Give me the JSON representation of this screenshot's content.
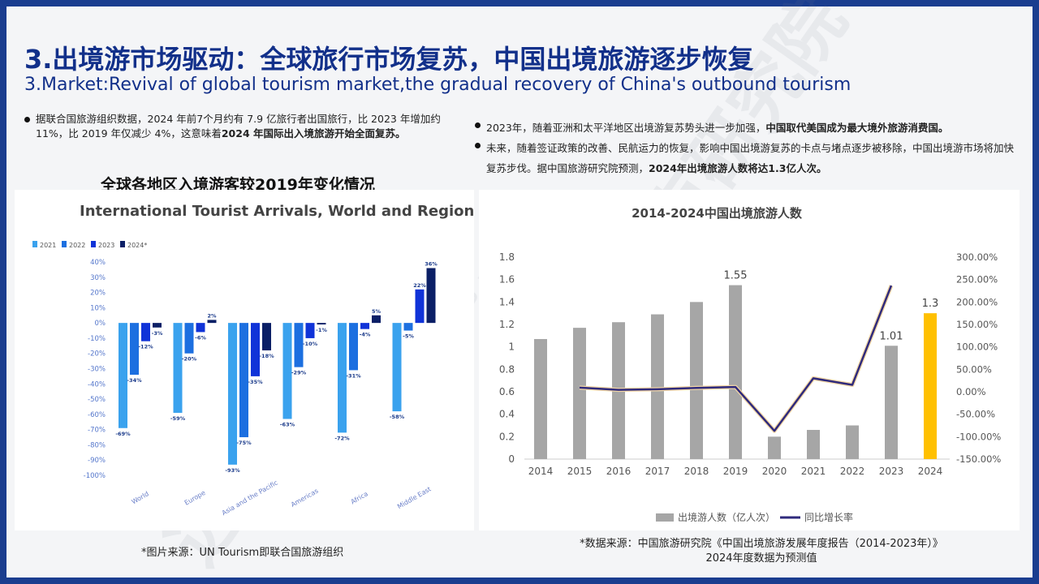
{
  "header": {
    "title_cn": "3.出境游市场驱动：全球旅行市场复苏，中国出境旅游逐步恢复",
    "title_en": "3.Market:Revival of global tourism market,the gradual recovery of China's outbound tourism"
  },
  "left_text": {
    "pre": "据联合国旅游组织数据，2024 年前7个月约有 7.9 亿旅行者出国旅行，比 2023 年增加约 11%，比 2019 年仅减少 4%，这意味着",
    "bold": "2024 年国际出入境旅游开始全面复苏。"
  },
  "right_text": {
    "b1_pre": "2023年，随着亚洲和太平洋地区出境游复苏势头进一步加强，",
    "b1_bold": "中国取代美国成为最大境外旅游消费国。",
    "b2_pre": "未来，随着签证政策的改善、民航运力的恢复，影响中国出境游复苏的卡点与堵点逐步被移除，中国出境游市场将加快复苏步伐。据中国旅游研究院预测，",
    "b2_bold": "2024年出境旅游人数将达1.3亿人次。"
  },
  "left_chart_heading": "全球各地区入境游客较2019年变化情况",
  "sources": {
    "left": "*图片来源：UN Tourism即联合国旅游组织",
    "right_line1": "*数据来源：中国旅游研究院《中国出境旅游发展年度报告（2014-2023年）》",
    "right_line2": "2024年度数据为预测值"
  },
  "watermark": {
    "cn": "迈点研究院",
    "en": "MEADIN ACADEMY"
  },
  "colors": {
    "title": "#12308a",
    "s2021": "#3aa2ee",
    "s2022": "#1c6fe0",
    "s2023": "#1033d8",
    "s2024": "#0b1f66",
    "bar_gray": "#a6a6a6",
    "bar_highlight": "#ffc000",
    "line": "#2f2a7c"
  },
  "chart_data": [
    {
      "type": "bar",
      "title": "International Tourist Arrivals, World and Regions",
      "categories": [
        "World",
        "Europe",
        "Asia and the Pacific",
        "Americas",
        "Africa",
        "Middle East"
      ],
      "series": [
        {
          "name": "2021",
          "values": [
            -69,
            -59,
            -93,
            -63,
            -72,
            -58
          ]
        },
        {
          "name": "2022",
          "values": [
            -34,
            -20,
            -75,
            -29,
            -31,
            -5
          ]
        },
        {
          "name": "2023",
          "values": [
            -12,
            -6,
            -35,
            -10,
            -4,
            22
          ]
        },
        {
          "name": "2024*",
          "values": [
            -3,
            2,
            -18,
            -1,
            5,
            36
          ]
        }
      ],
      "ylim": [
        -100,
        40
      ],
      "yticks": [
        "40%",
        "30%",
        "20%",
        "10%",
        "0%",
        "-10%",
        "-20%",
        "-30%",
        "-40%",
        "-50%",
        "-60%",
        "-70%",
        "-80%",
        "-90%",
        "-100%"
      ],
      "unit": "%",
      "legend_position": "top-left",
      "grid": false
    },
    {
      "type": "bar",
      "title": "2014-2024中国出境旅游人数",
      "categories": [
        "2014",
        "2015",
        "2016",
        "2017",
        "2018",
        "2019",
        "2020",
        "2021",
        "2022",
        "2023",
        "2024"
      ],
      "series": [
        {
          "name": "出境游人数（亿人次）",
          "type": "bar",
          "axis": "left",
          "values": [
            1.07,
            1.17,
            1.22,
            1.29,
            1.4,
            1.55,
            0.2,
            0.26,
            0.3,
            1.01,
            1.3
          ]
        },
        {
          "name": "同比增长率",
          "type": "line",
          "axis": "right",
          "x": [
            "2015",
            "2016",
            "2017",
            "2018",
            "2019",
            "2020",
            "2021",
            "2022",
            "2023"
          ],
          "values": [
            9.3,
            4.3,
            5.7,
            8.5,
            10.7,
            -87.1,
            30.0,
            15.4,
            236.7
          ]
        }
      ],
      "data_labels": {
        "2019": "1.55",
        "2023": "1.01",
        "2024": "1.3"
      },
      "highlight": "2024",
      "y_left": {
        "lim": [
          0,
          1.8
        ],
        "ticks": [
          "0",
          "0.2",
          "0.4",
          "0.6",
          "0.8",
          "1",
          "1.2",
          "1.4",
          "1.6",
          "1.8"
        ]
      },
      "y_right": {
        "lim": [
          -150,
          300
        ],
        "ticks": [
          "300.00%",
          "250.00%",
          "200.00%",
          "150.00%",
          "100.00%",
          "50.00%",
          "0.00%",
          "-50.00%",
          "-100.00%",
          "-150.00%"
        ]
      },
      "legend_position": "bottom",
      "grid": false
    }
  ]
}
